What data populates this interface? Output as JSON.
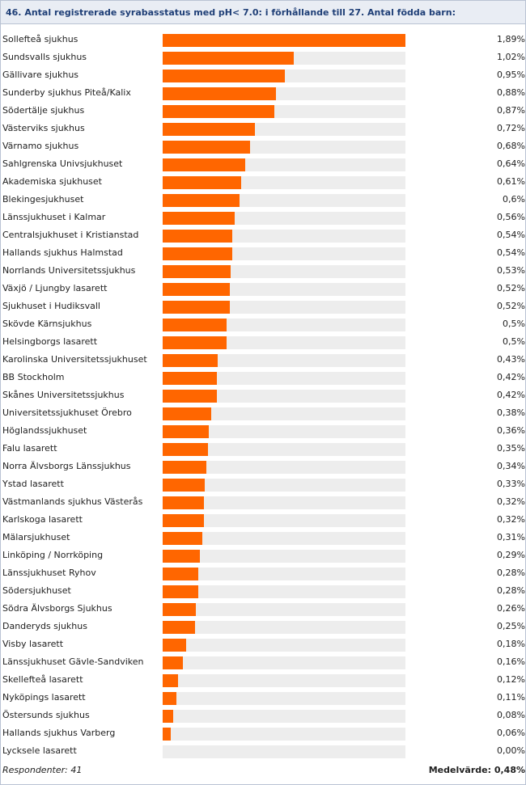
{
  "title": "46. Antal registrerade syrabasstatus med pH< 7.0: i förhållande till 27. Antal födda barn:",
  "footer": {
    "respondents": "Respondenter: 41",
    "mean": "Medelvärde: 0,48%"
  },
  "colors": {
    "bar": "#ff6600",
    "track": "#ededed",
    "header_bg": "#e9edf4",
    "title": "#1f3f77"
  },
  "chart_data": {
    "type": "bar",
    "orientation": "horizontal",
    "title": "46. Antal registrerade syrabasstatus med pH< 7.0: i förhållande till 27. Antal födda barn:",
    "xlim": [
      0,
      1.89
    ],
    "categories": [
      "Sollefteå sjukhus",
      "Sundsvalls sjukhus",
      "Gällivare sjukhus",
      "Sunderby sjukhus Piteå/Kalix",
      "Södertälje sjukhus",
      "Västerviks sjukhus",
      "Värnamo sjukhus",
      "Sahlgrenska Univsjukhuset",
      "Akademiska sjukhuset",
      "Blekingesjukhuset",
      "Länssjukhuset i Kalmar",
      "Centralsjukhuset i Kristianstad",
      "Hallands sjukhus Halmstad",
      "Norrlands Universitetssjukhus",
      "Växjö / Ljungby lasarett",
      "Sjukhuset i Hudiksvall",
      "Skövde Kärnsjukhus",
      "Helsingborgs lasarett",
      "Karolinska Universitetssjukhuset",
      "BB Stockholm",
      "Skånes Universitetssjukhus",
      "Universitetssjukhuset Örebro",
      "Höglandssjukhuset",
      "Falu lasarett",
      "Norra Älvsborgs Länssjukhus",
      "Ystad lasarett",
      "Västmanlands sjukhus Västerås",
      "Karlskoga lasarett",
      "Mälarsjukhuset",
      "Linköping / Norrköping",
      "Länssjukhuset Ryhov",
      "Södersjukhuset",
      "Södra Älvsborgs Sjukhus",
      "Danderyds sjukhus",
      "Visby lasarett",
      "Länssjukhuset Gävle-Sandviken",
      "Skellefteå lasarett",
      "Nyköpings lasarett",
      "Östersunds sjukhus",
      "Hallands sjukhus Varberg",
      "Lycksele lasarett"
    ],
    "values": [
      1.89,
      1.02,
      0.95,
      0.88,
      0.87,
      0.72,
      0.68,
      0.64,
      0.61,
      0.6,
      0.56,
      0.54,
      0.54,
      0.53,
      0.52,
      0.52,
      0.5,
      0.5,
      0.43,
      0.42,
      0.42,
      0.38,
      0.36,
      0.35,
      0.34,
      0.33,
      0.32,
      0.32,
      0.31,
      0.29,
      0.28,
      0.28,
      0.26,
      0.25,
      0.18,
      0.16,
      0.12,
      0.11,
      0.08,
      0.06,
      0.0
    ],
    "value_labels": [
      "1,89%",
      "1,02%",
      "0,95%",
      "0,88%",
      "0,87%",
      "0,72%",
      "0,68%",
      "0,64%",
      "0,61%",
      "0,6%",
      "0,56%",
      "0,54%",
      "0,54%",
      "0,53%",
      "0,52%",
      "0,52%",
      "0,5%",
      "0,5%",
      "0,43%",
      "0,42%",
      "0,42%",
      "0,38%",
      "0,36%",
      "0,35%",
      "0,34%",
      "0,33%",
      "0,32%",
      "0,32%",
      "0,31%",
      "0,29%",
      "0,28%",
      "0,28%",
      "0,26%",
      "0,25%",
      "0,18%",
      "0,16%",
      "0,12%",
      "0,11%",
      "0,08%",
      "0,06%",
      "0,00%"
    ]
  }
}
